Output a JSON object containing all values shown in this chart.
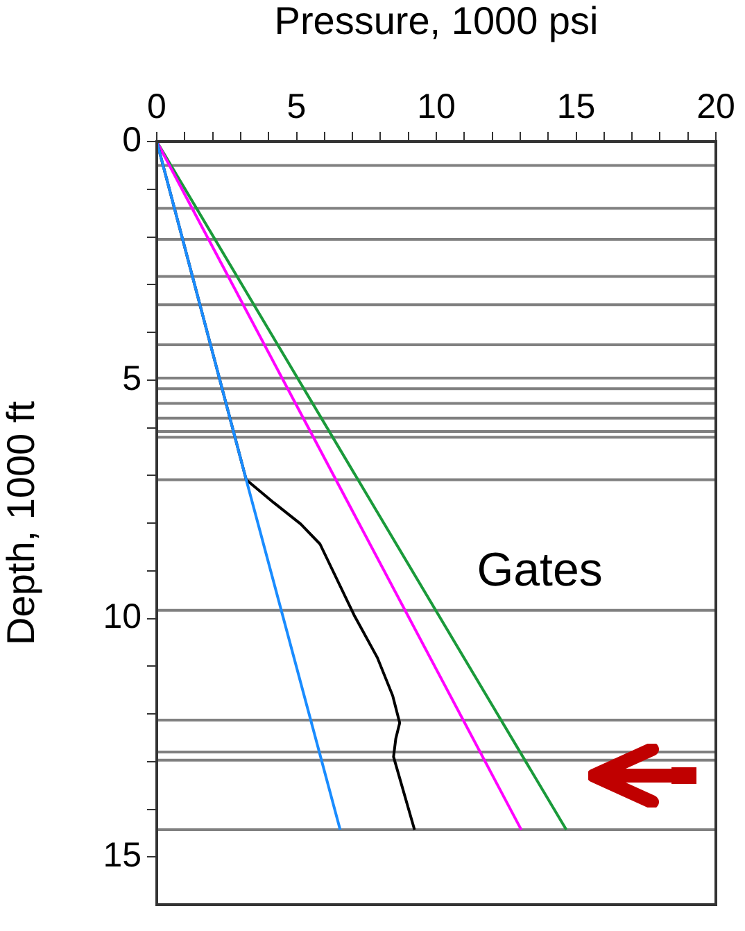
{
  "chart_data": {
    "type": "line",
    "xlabel": "Pressure, 1000 psi",
    "ylabel": "Depth, 1000 ft",
    "xlim": [
      0,
      20
    ],
    "ylim": [
      16,
      0
    ],
    "xticks": [
      0,
      {
        "value": 1,
        "label": null
      },
      {
        "value": 2,
        "label": null
      },
      {
        "value": 3,
        "label": null
      },
      {
        "value": 4,
        "label": null
      },
      5,
      {
        "value": 6,
        "label": null
      },
      {
        "value": 7,
        "label": null
      },
      {
        "value": 8,
        "label": null
      },
      {
        "value": 9,
        "label": null
      },
      10,
      {
        "value": 11,
        "label": null
      },
      {
        "value": 12,
        "label": null
      },
      {
        "value": 13,
        "label": null
      },
      {
        "value": 14,
        "label": null
      },
      15,
      {
        "value": 16,
        "label": null
      },
      {
        "value": 17,
        "label": null
      },
      {
        "value": 18,
        "label": null
      },
      {
        "value": 19,
        "label": null
      },
      20
    ],
    "yticks": [
      0,
      {
        "value": 1,
        "label": null
      },
      {
        "value": 2,
        "label": null
      },
      {
        "value": 3,
        "label": null
      },
      {
        "value": 4,
        "label": null
      },
      5,
      {
        "value": 6,
        "label": null
      },
      {
        "value": 7,
        "label": null
      },
      {
        "value": 8,
        "label": null
      },
      {
        "value": 9,
        "label": null
      },
      10,
      {
        "value": 11,
        "label": null
      },
      {
        "value": 12,
        "label": null
      },
      {
        "value": 13,
        "label": null
      },
      {
        "value": 14,
        "label": null
      },
      15
    ],
    "grid": false,
    "legend": false,
    "marker": "none",
    "series": [
      {
        "color": "#1a8cff",
        "x": [
          0,
          3.2,
          6.56
        ],
        "values": [
          0,
          7.09,
          14.43
        ]
      },
      {
        "color": "#000000",
        "x": [
          0,
          3.2,
          4.18,
          5.15,
          5.84,
          7.06,
          7.89,
          8.44,
          8.69,
          8.55,
          8.47,
          9.22
        ],
        "values": [
          0,
          7.09,
          7.57,
          8.02,
          8.44,
          9.93,
          10.82,
          11.62,
          12.19,
          12.52,
          12.9,
          14.43
        ]
      },
      {
        "color": "#ff00ff",
        "x": [
          0,
          13.04
        ],
        "values": [
          0,
          14.43
        ]
      },
      {
        "color": "#1a9a3a",
        "x": [
          0,
          14.65
        ],
        "values": [
          0,
          14.43
        ]
      }
    ],
    "ref_lines": [
      {
        "axis": "y",
        "value": 0.5,
        "color": "#808080"
      },
      {
        "axis": "y",
        "value": 1.4,
        "color": "#808080"
      },
      {
        "axis": "y",
        "value": 2.05,
        "color": "#808080"
      },
      {
        "axis": "y",
        "value": 2.83,
        "color": "#808080"
      },
      {
        "axis": "y",
        "value": 3.42,
        "color": "#808080"
      },
      {
        "axis": "y",
        "value": 4.26,
        "color": "#808080"
      },
      {
        "axis": "y",
        "value": 4.96,
        "color": "#808080"
      },
      {
        "axis": "y",
        "value": 5.18,
        "color": "#808080"
      },
      {
        "axis": "y",
        "value": 5.49,
        "color": "#808080"
      },
      {
        "axis": "y",
        "value": 5.8,
        "color": "#808080"
      },
      {
        "axis": "y",
        "value": 6.08,
        "color": "#808080"
      },
      {
        "axis": "y",
        "value": 6.2,
        "color": "#808080"
      },
      {
        "axis": "y",
        "value": 7.09,
        "color": "#808080"
      },
      {
        "axis": "y",
        "value": 9.83,
        "color": "#808080"
      },
      {
        "axis": "y",
        "value": 12.13,
        "color": "#808080"
      },
      {
        "axis": "y",
        "value": 12.8,
        "color": "#808080"
      },
      {
        "axis": "y",
        "value": 12.97,
        "color": "#808080"
      },
      {
        "axis": "y",
        "value": 14.43,
        "color": "#808080"
      }
    ],
    "annotations": [
      "Gates"
    ]
  }
}
